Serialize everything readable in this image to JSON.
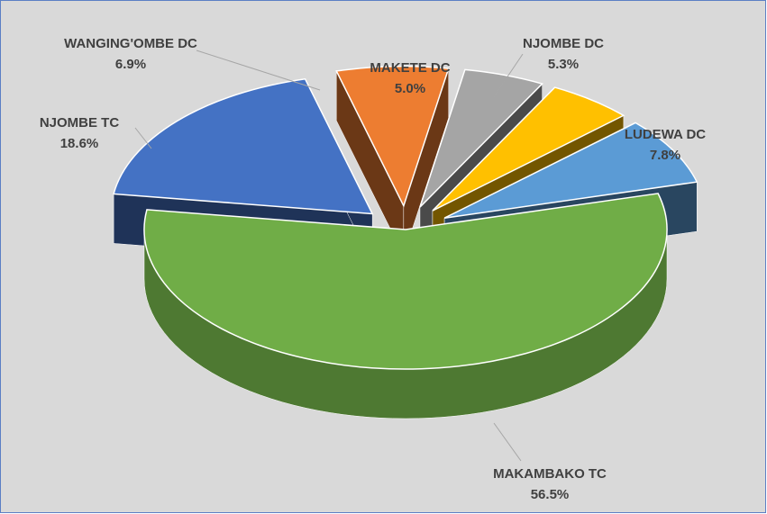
{
  "chart_data": {
    "type": "pie",
    "categories": [
      "MAKAMBAKO TC",
      "NJOMBE TC",
      "WANGING'OMBE DC",
      "MAKETE DC",
      "NJOMBE DC",
      "LUDEWA DC"
    ],
    "values": [
      56.5,
      18.6,
      6.9,
      5.0,
      5.3,
      7.8
    ],
    "value_labels": [
      "56.5%",
      "18.6%",
      "6.9%",
      "5.0%",
      "5.3%",
      "7.8%"
    ],
    "colors": [
      "#70ad47",
      "#4472c4",
      "#ed7d31",
      "#a5a5a5",
      "#ffc000",
      "#5b9bd5"
    ]
  }
}
